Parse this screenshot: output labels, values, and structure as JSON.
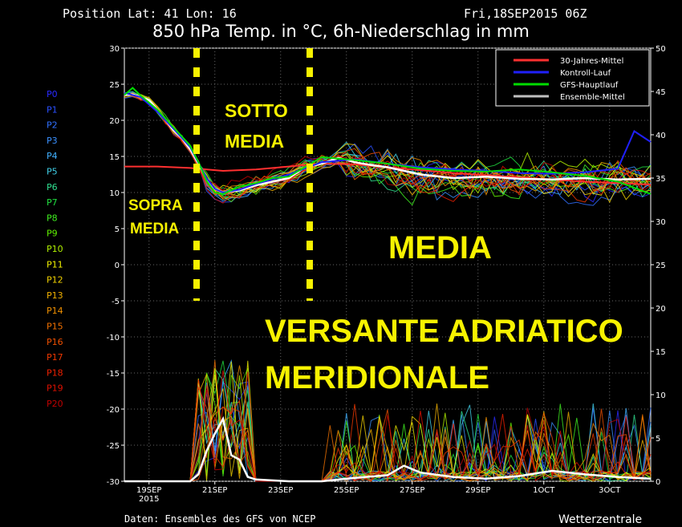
{
  "header": {
    "position": "Position  Lat: 41 Lon: 16",
    "date": "Fri,18SEP2015 06Z",
    "title": "850 hPa Temp. in °C, 6h-Niederschlag in mm"
  },
  "footer": {
    "source": "Daten: Ensembles des GFS von NCEP",
    "brand": "Wetterzentrale"
  },
  "members": [
    {
      "name": "P0",
      "color": "#2a2aff"
    },
    {
      "name": "P1",
      "color": "#2a50ff"
    },
    {
      "name": "P2",
      "color": "#3070ff"
    },
    {
      "name": "P3",
      "color": "#3a90ff"
    },
    {
      "name": "P4",
      "color": "#40b0ff"
    },
    {
      "name": "P5",
      "color": "#40d0e8"
    },
    {
      "name": "P6",
      "color": "#30e090"
    },
    {
      "name": "P7",
      "color": "#20e040"
    },
    {
      "name": "P8",
      "color": "#40f020"
    },
    {
      "name": "P9",
      "color": "#60f000"
    },
    {
      "name": "P10",
      "color": "#b0f000"
    },
    {
      "name": "P11",
      "color": "#f0f000"
    },
    {
      "name": "P12",
      "color": "#f0d000"
    },
    {
      "name": "P13",
      "color": "#f0b000"
    },
    {
      "name": "P14",
      "color": "#f09000"
    },
    {
      "name": "P15",
      "color": "#f07000"
    },
    {
      "name": "P16",
      "color": "#f05000"
    },
    {
      "name": "P17",
      "color": "#f03800"
    },
    {
      "name": "P18",
      "color": "#f02000"
    },
    {
      "name": "P19",
      "color": "#e01000"
    },
    {
      "name": "P20",
      "color": "#c00000"
    }
  ],
  "annotations": {
    "sopra": [
      "SOPRA",
      "MEDIA"
    ],
    "sotto": [
      "SOTTO",
      "MEDIA"
    ],
    "media": "MEDIA",
    "region": [
      "VERSANTE ADRIATICO",
      "MERIDIONALE"
    ]
  },
  "chart_data": {
    "type": "line",
    "x_unit": "forecast hours from 18SEP2015 06Z",
    "xlim": [
      0,
      384
    ],
    "x_ticks": [
      {
        "h": 18,
        "label": "19SEP",
        "sub": "2015"
      },
      {
        "h": 66,
        "label": "21SEP",
        "sub": ""
      },
      {
        "h": 114,
        "label": "23SEP",
        "sub": ""
      },
      {
        "h": 162,
        "label": "25SEP",
        "sub": ""
      },
      {
        "h": 210,
        "label": "27SEP",
        "sub": ""
      },
      {
        "h": 258,
        "label": "29SEP",
        "sub": ""
      },
      {
        "h": 306,
        "label": "1OCT",
        "sub": ""
      },
      {
        "h": 354,
        "label": "3OCT",
        "sub": ""
      }
    ],
    "left_axis": {
      "label": "850 hPa Temp. (°C)",
      "ylim": [
        -30,
        30
      ],
      "ticks": [
        30,
        25,
        20,
        15,
        10,
        5,
        0,
        -5,
        -10,
        -15,
        -20,
        -25,
        -30
      ]
    },
    "right_axis": {
      "label": "6h-Niederschlag (mm)",
      "ylim": [
        0,
        50
      ],
      "ticks": [
        50,
        45,
        40,
        35,
        30,
        25,
        20,
        15,
        10,
        5,
        0
      ]
    },
    "legend": {
      "placement": "top-right",
      "entries": [
        {
          "name": "30-Jahres-Mittel",
          "color": "#ff3030"
        },
        {
          "name": "Kontroll-Lauf",
          "color": "#2020ff"
        },
        {
          "name": "GFS-Hauptlauf",
          "color": "#00dd00"
        },
        {
          "name": "Ensemble-Mittel",
          "color": "#c0c0c0"
        }
      ]
    },
    "series": [
      {
        "name": "30-Jahres-Mittel",
        "axis": "left",
        "x": [
          0,
          24,
          48,
          60,
          72,
          96,
          120,
          144,
          168,
          192,
          216,
          240,
          264,
          288,
          312,
          336,
          360,
          384
        ],
        "values": [
          13.6,
          13.6,
          13.4,
          13.2,
          13.0,
          13.2,
          13.6,
          14.0,
          13.9,
          13.5,
          13.1,
          12.7,
          12.4,
          12.1,
          11.8,
          11.5,
          11.3,
          11.1
        ]
      },
      {
        "name": "Ensemble-Mittel",
        "axis": "left",
        "x": [
          0,
          6,
          12,
          18,
          24,
          30,
          36,
          42,
          48,
          54,
          60,
          66,
          72,
          84,
          96,
          108,
          120,
          132,
          144,
          156,
          168,
          180,
          192,
          216,
          240,
          264,
          288,
          312,
          336,
          360,
          384
        ],
        "values": [
          23.5,
          23.6,
          23.2,
          22.8,
          21.5,
          20.0,
          18.6,
          17.5,
          16.0,
          14.0,
          11.8,
          10.5,
          10.0,
          10.3,
          11.0,
          11.5,
          12.0,
          13.5,
          14.0,
          14.8,
          14.2,
          13.8,
          13.5,
          12.5,
          12.0,
          12.2,
          11.9,
          11.8,
          12.0,
          11.8,
          11.9
        ]
      },
      {
        "name": "Kontroll-Lauf",
        "axis": "left",
        "x": [
          0,
          12,
          24,
          36,
          48,
          60,
          66,
          72,
          84,
          96,
          108,
          120,
          144,
          168,
          192,
          216,
          240,
          264,
          288,
          312,
          336,
          360,
          372,
          384
        ],
        "values": [
          23.8,
          23.2,
          21.2,
          18.8,
          16.3,
          12.0,
          10.5,
          10.0,
          10.4,
          11.2,
          11.8,
          12.5,
          14.2,
          14.6,
          14.0,
          13.5,
          13.2,
          13.0,
          12.7,
          12.6,
          12.8,
          13.3,
          18.5,
          17.0
        ]
      },
      {
        "name": "GFS-Hauptlauf",
        "axis": "left",
        "x": [
          0,
          6,
          12,
          24,
          36,
          48,
          54,
          60,
          66,
          72,
          84,
          96,
          108,
          120,
          144,
          168,
          192,
          216,
          240,
          264,
          288,
          312,
          336,
          360,
          384
        ],
        "values": [
          23.5,
          24.5,
          23.4,
          21.5,
          19.0,
          16.5,
          14.2,
          11.6,
          10.0,
          9.8,
          10.8,
          11.3,
          12.0,
          12.2,
          14.9,
          14.5,
          14.0,
          13.3,
          13.0,
          12.9,
          13.2,
          12.8,
          12.3,
          11.5,
          9.8
        ]
      },
      {
        "name": "Ensemble-Mittel Niederschlag",
        "axis": "right",
        "x": [
          0,
          48,
          54,
          60,
          66,
          72,
          78,
          84,
          90,
          96,
          120,
          144,
          168,
          192,
          204,
          216,
          240,
          264,
          288,
          312,
          336,
          360,
          384
        ],
        "values": [
          0,
          0,
          0.8,
          3.5,
          5.5,
          7.2,
          3.0,
          2.5,
          0.5,
          0.2,
          0,
          0,
          0.4,
          0.7,
          1.8,
          1.0,
          0.5,
          0.3,
          0.6,
          1.2,
          0.8,
          0.5,
          0.3
        ]
      }
    ]
  }
}
